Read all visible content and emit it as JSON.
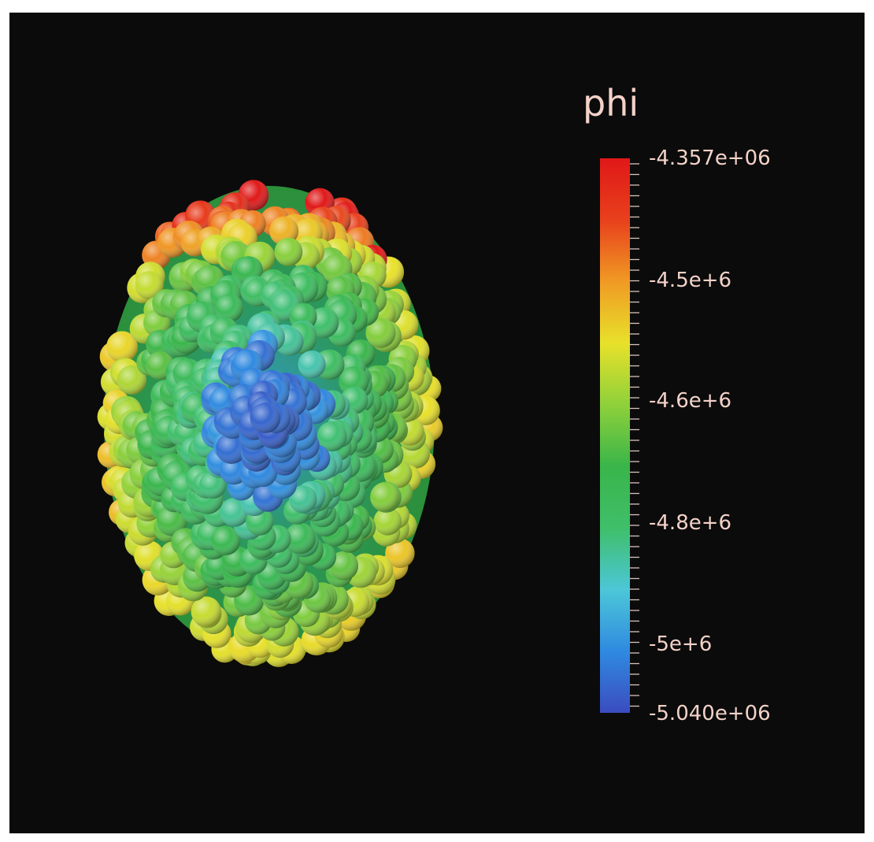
{
  "scalar_bar": {
    "title": "phi",
    "max_label": "-4.357e+06",
    "min_label": "-5.040e+06",
    "max_value": -4357000,
    "min_value": -5040000,
    "ticks": [
      {
        "value": -4500000,
        "label": "-4.5e+6"
      },
      {
        "value": -4600000,
        "label": "-4.6e+6"
      },
      {
        "value": -4800000,
        "label": "-4.8e+6"
      },
      {
        "value": -5000000,
        "label": "-5e+6"
      }
    ],
    "colormap": [
      "#3b4cc0",
      "#2f8ae0",
      "#4cc7d8",
      "#3fbf6a",
      "#39b54a",
      "#8fd13a",
      "#e8e12a",
      "#f09a24",
      "#e8401c",
      "#e01818"
    ]
  },
  "colors": {
    "background": "#0b0b0b",
    "label_text": "#f3d2c8"
  }
}
